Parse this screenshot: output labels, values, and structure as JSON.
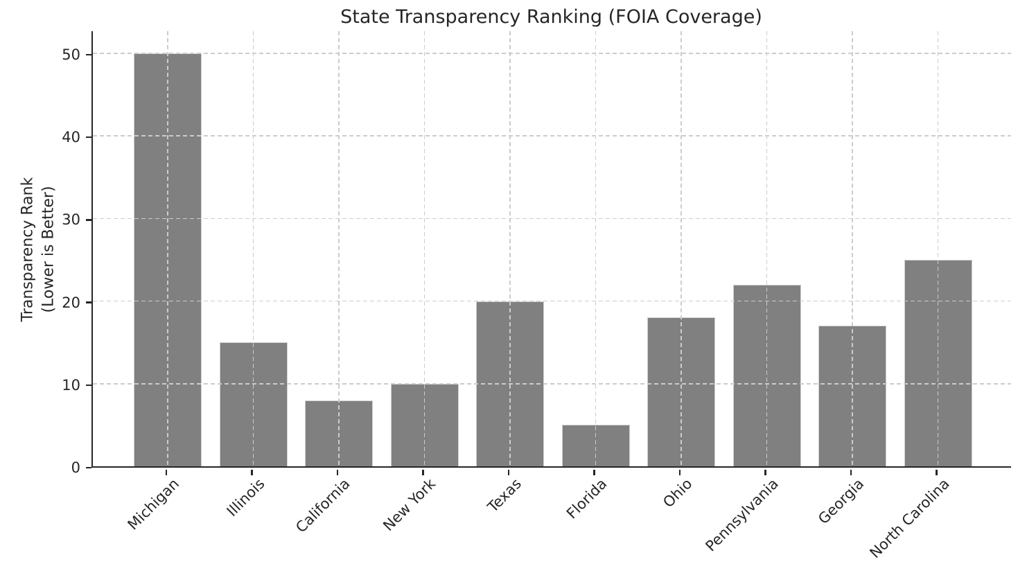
{
  "chart_data": {
    "type": "bar",
    "title": "State Transparency Ranking (FOIA Coverage)",
    "ylabel_lines": [
      "Transparency Rank",
      "(Lower is Better)"
    ],
    "xlabel": "",
    "categories": [
      "Michigan",
      "Illinois",
      "California",
      "New York",
      "Texas",
      "Florida",
      "Ohio",
      "Pennsylvania",
      "Georgia",
      "North Carolina"
    ],
    "values": [
      50,
      15,
      8,
      10,
      20,
      5,
      18,
      22,
      17,
      25
    ],
    "yticks": [
      0,
      10,
      20,
      30,
      40,
      50
    ],
    "ylim": [
      0,
      52.9
    ],
    "xtick_rotation_deg": 45,
    "grid": "dashed light-gray gridlines on both axes, drawn above bars",
    "legend": "none",
    "colors": {
      "bar_fill": "#808080",
      "bar_edge": "#cfcfcf",
      "grid": "#cccccc",
      "axis": "#262626",
      "text": "#262626",
      "background": "#ffffff"
    }
  }
}
